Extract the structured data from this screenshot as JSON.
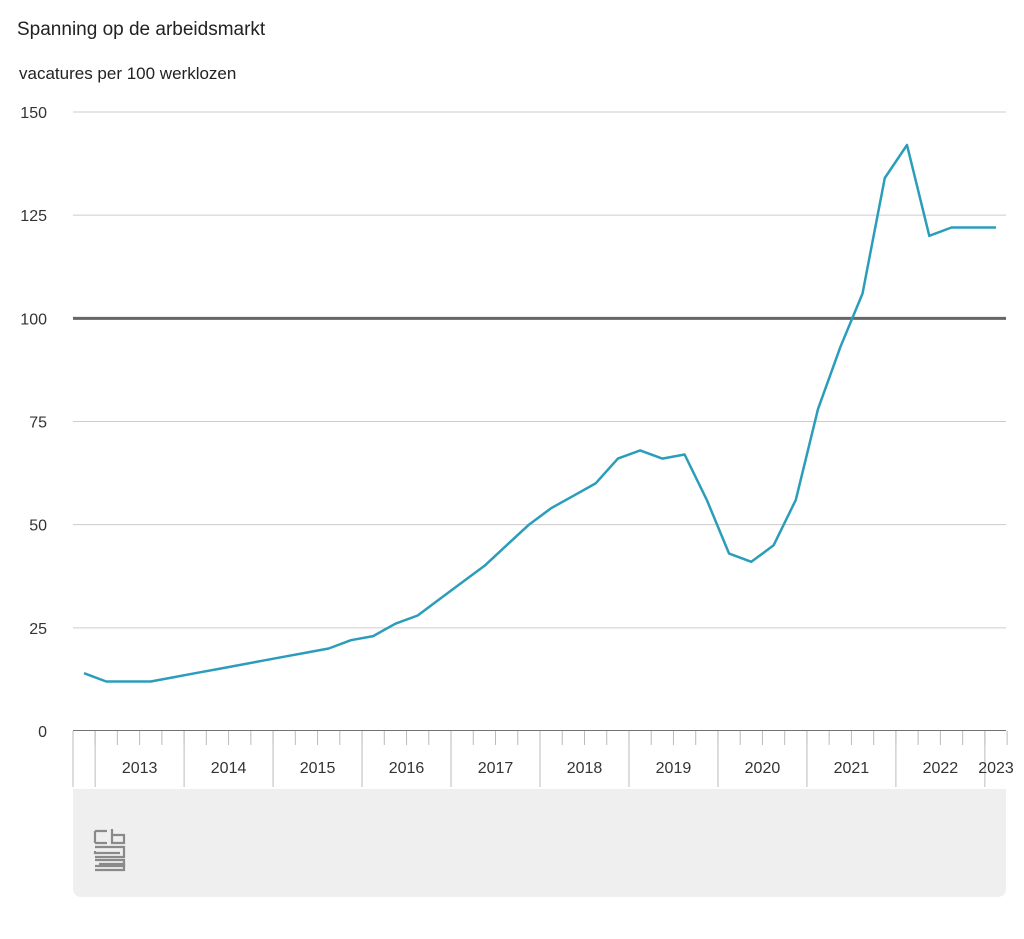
{
  "chart_data": {
    "type": "line",
    "title": "Spanning op de arbeidsmarkt",
    "subtitle": "vacatures per 100 werklozen",
    "ylim": [
      0,
      150
    ],
    "yticks": [
      0,
      25,
      50,
      75,
      100,
      125,
      150
    ],
    "reference_line": 100,
    "year_labels": [
      "2013",
      "2014",
      "2015",
      "2016",
      "2017",
      "2018",
      "2019",
      "2020",
      "2021",
      "2022",
      "2023"
    ],
    "series": [
      {
        "color": "#2b9dbb",
        "x": [
          "2012-Q4",
          "2013-Q1",
          "2013-Q2",
          "2013-Q3",
          "2013-Q4",
          "2014-Q1",
          "2014-Q2",
          "2014-Q3",
          "2014-Q4",
          "2015-Q1",
          "2015-Q2",
          "2015-Q3",
          "2015-Q4",
          "2016-Q1",
          "2016-Q2",
          "2016-Q3",
          "2016-Q4",
          "2017-Q1",
          "2017-Q2",
          "2017-Q3",
          "2017-Q4",
          "2018-Q1",
          "2018-Q2",
          "2018-Q3",
          "2018-Q4",
          "2019-Q1",
          "2019-Q2",
          "2019-Q3",
          "2019-Q4",
          "2020-Q1",
          "2020-Q2",
          "2020-Q3",
          "2020-Q4",
          "2021-Q1",
          "2021-Q2",
          "2021-Q3",
          "2021-Q4",
          "2022-Q1",
          "2022-Q2",
          "2022-Q3",
          "2022-Q4",
          "2023-Q1"
        ],
        "values": [
          14,
          12,
          12,
          12,
          13,
          14,
          15,
          16,
          17,
          18,
          19,
          20,
          22,
          23,
          26,
          28,
          32,
          36,
          40,
          45,
          50,
          54,
          57,
          60,
          66,
          68,
          66,
          67,
          56,
          43,
          41,
          45,
          56,
          78,
          93,
          106,
          134,
          142,
          120,
          122,
          122,
          122
        ]
      }
    ],
    "colors": {
      "line": "#2b9dbb",
      "reference": "#666666",
      "grid": "#cccccc",
      "panel": "#efefef"
    },
    "logo": "cbs"
  }
}
